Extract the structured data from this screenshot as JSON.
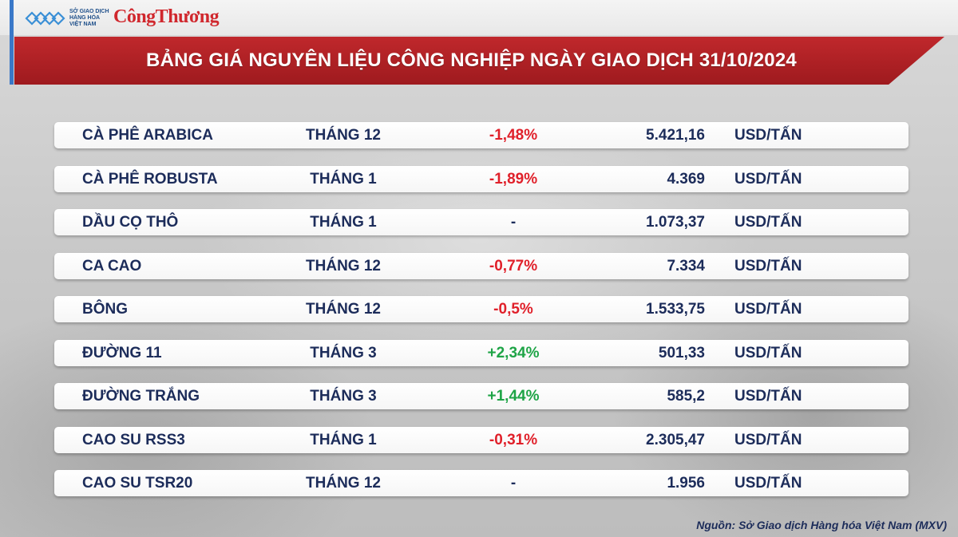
{
  "logos": {
    "sgd_line1": "SỞ GIAO DỊCH",
    "sgd_line2": "HÀNG HÓA",
    "sgd_line3": "VIỆT NAM",
    "congthuong": "CôngThương"
  },
  "title": "BẢNG GIÁ NGUYÊN LIỆU CÔNG NGHIỆP NGÀY GIAO DỊCH 31/10/2024",
  "colors": {
    "banner_red": "#b0222a",
    "negative": "#e0202a",
    "positive": "#1ea446",
    "text_navy": "#1c2c5a"
  },
  "rows": [
    {
      "name": "CÀ PHÊ ARABICA",
      "month": "THÁNG 12",
      "change": "-1,48%",
      "trend": "neg",
      "price": "5.421,16",
      "unit": "USD/TẤN"
    },
    {
      "name": "CÀ PHÊ ROBUSTA",
      "month": "THÁNG 1",
      "change": "-1,89%",
      "trend": "neg",
      "price": "4.369",
      "unit": "USD/TẤN"
    },
    {
      "name": "DẦU CỌ THÔ",
      "month": "THÁNG 1",
      "change": "-",
      "trend": "flat",
      "price": "1.073,37",
      "unit": "USD/TẤN"
    },
    {
      "name": "CA CAO",
      "month": "THÁNG 12",
      "change": "-0,77%",
      "trend": "neg",
      "price": "7.334",
      "unit": "USD/TẤN"
    },
    {
      "name": "BÔNG",
      "month": "THÁNG 12",
      "change": "-0,5%",
      "trend": "neg",
      "price": "1.533,75",
      "unit": "USD/TẤN"
    },
    {
      "name": "ĐƯỜNG 11",
      "month": "THÁNG 3",
      "change": "+2,34%",
      "trend": "pos",
      "price": "501,33",
      "unit": "USD/TẤN"
    },
    {
      "name": "ĐƯỜNG TRẮNG",
      "month": "THÁNG 3",
      "change": "+1,44%",
      "trend": "pos",
      "price": "585,2",
      "unit": "USD/TẤN"
    },
    {
      "name": "CAO SU RSS3",
      "month": "THÁNG 1",
      "change": "-0,31%",
      "trend": "neg",
      "price": "2.305,47",
      "unit": "USD/TẤN"
    },
    {
      "name": "CAO SU TSR20",
      "month": "THÁNG 12",
      "change": "-",
      "trend": "flat",
      "price": "1.956",
      "unit": "USD/TẤN"
    }
  ],
  "source": "Nguồn: Sở Giao dịch Hàng hóa Việt Nam (MXV)"
}
